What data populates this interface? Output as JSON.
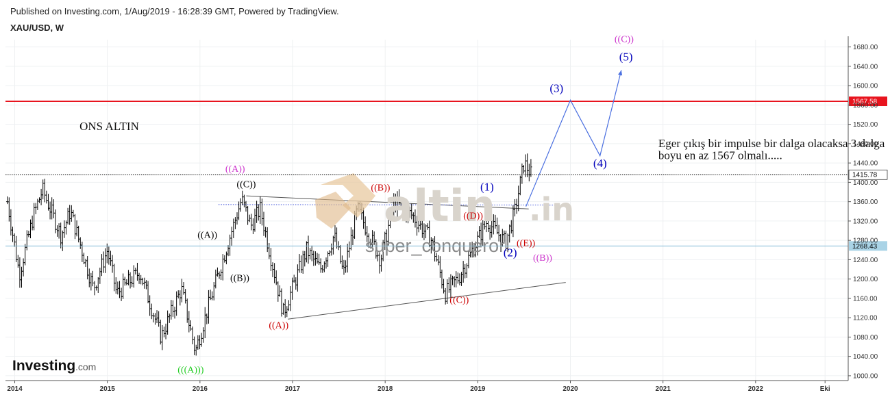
{
  "header": {
    "published": "Published on Investing.com, 1/Aug/2019 - 16:28:39 GMT, Powered by TradingView.",
    "symbol": "XAU/USD, W"
  },
  "watermark": {
    "logo": "altin",
    "logo_suffix": ".in",
    "user": "super_conqueror"
  },
  "brand": {
    "name": "Investing",
    "suffix": ".com"
  },
  "colors": {
    "resistance": "#e8141e",
    "current_price_line": "#000000",
    "blue_level": "#7fb8d4",
    "projection": "#4a6fe0",
    "bars": "#000000"
  },
  "chart_data": {
    "type": "ohlc",
    "x_unit": "year",
    "xlim": [
      2013.9,
      2023.0
    ],
    "ylim": [
      990,
      1695
    ],
    "y_ticks": [
      1000,
      1040,
      1080,
      1120,
      1160,
      1200,
      1240,
      1280,
      1320,
      1360,
      1400,
      1440,
      1480,
      1520,
      1560,
      1600,
      1640,
      1680
    ],
    "y_tick_labels": [
      "1000.00",
      "1040.00",
      "1080.00",
      "1120.00",
      "1160.00",
      "1200.00",
      "1240.00",
      "1280.00",
      "1320.00",
      "1360.00",
      "1400.00",
      "1440.00",
      "1480.00",
      "1520.00",
      "1560.00",
      "1600.00",
      "1640.00",
      "1680.00"
    ],
    "x_ticks": [
      {
        "x": 2014,
        "label": "2014"
      },
      {
        "x": 2015,
        "label": "2015"
      },
      {
        "x": 2016,
        "label": "2016"
      },
      {
        "x": 2017,
        "label": "2017"
      },
      {
        "x": 2018,
        "label": "2018"
      },
      {
        "x": 2019,
        "label": "2019"
      },
      {
        "x": 2020,
        "label": "2020"
      },
      {
        "x": 2021,
        "label": "2021"
      },
      {
        "x": 2022,
        "label": "2022"
      },
      {
        "x": 2022.75,
        "label": "Eki"
      }
    ],
    "price_path": [
      [
        2013.92,
        1360
      ],
      [
        2014.05,
        1210
      ],
      [
        2014.2,
        1330
      ],
      [
        2014.3,
        1385
      ],
      [
        2014.5,
        1290
      ],
      [
        2014.6,
        1340
      ],
      [
        2014.85,
        1180
      ],
      [
        2015.0,
        1260
      ],
      [
        2015.1,
        1170
      ],
      [
        2015.35,
        1215
      ],
      [
        2015.58,
        1080
      ],
      [
        2015.8,
        1180
      ],
      [
        2015.95,
        1050
      ],
      [
        2016.1,
        1150
      ],
      [
        2016.45,
        1365
      ],
      [
        2016.55,
        1310
      ],
      [
        2016.65,
        1345
      ],
      [
        2016.9,
        1130
      ],
      [
        2017.15,
        1260
      ],
      [
        2017.3,
        1220
      ],
      [
        2017.45,
        1290
      ],
      [
        2017.55,
        1210
      ],
      [
        2017.7,
        1345
      ],
      [
        2017.95,
        1240
      ],
      [
        2018.1,
        1360
      ],
      [
        2018.3,
        1330
      ],
      [
        2018.5,
        1280
      ],
      [
        2018.65,
        1170
      ],
      [
        2018.8,
        1205
      ],
      [
        2019.1,
        1320
      ],
      [
        2019.3,
        1275
      ],
      [
        2019.4,
        1340
      ],
      [
        2019.5,
        1440
      ],
      [
        2019.58,
        1415.78
      ]
    ],
    "horizontal_lines": [
      {
        "price": 1567.58,
        "label": "1567.58",
        "style": "solid",
        "color": "#e8141e"
      },
      {
        "price": 1415.78,
        "label": "1415.78",
        "style": "dotted",
        "color": "#000000"
      },
      {
        "price": 1268.43,
        "label": "1268.43",
        "style": "solid",
        "color": "#7fb8d4"
      }
    ],
    "projection_path": [
      [
        2019.52,
        1350
      ],
      [
        2020.0,
        1570
      ],
      [
        2020.32,
        1455
      ],
      [
        2020.55,
        1632
      ]
    ],
    "trendlines": [
      {
        "points": [
          [
            2016.5,
            1372
          ],
          [
            2019.55,
            1345
          ]
        ],
        "color": "#555555",
        "style": "solid"
      },
      {
        "points": [
          [
            2016.95,
            1117
          ],
          [
            2019.95,
            1193
          ]
        ],
        "color": "#555555",
        "style": "solid"
      },
      {
        "points": [
          [
            2016.2,
            1354
          ],
          [
            2019.85,
            1353
          ]
        ],
        "color": "#3b4fd8",
        "style": "dotted"
      }
    ],
    "wave_labels": [
      {
        "text": "((A))",
        "x": 2016.38,
        "y": 1422,
        "color": "#cc33cc"
      },
      {
        "text": "((C))",
        "x": 2016.5,
        "y": 1390,
        "color": "#000000"
      },
      {
        "text": "((A))",
        "x": 2016.08,
        "y": 1285,
        "color": "#000000"
      },
      {
        "text": "((B))",
        "x": 2016.43,
        "y": 1196,
        "color": "#000000"
      },
      {
        "text": "(((A)))",
        "x": 2015.9,
        "y": 1006,
        "color": "#22cc22"
      },
      {
        "text": "((A))",
        "x": 2016.85,
        "y": 1098,
        "color": "#cc0000"
      },
      {
        "text": "((B))",
        "x": 2017.95,
        "y": 1383,
        "color": "#cc0000"
      },
      {
        "text": "((C))",
        "x": 2018.8,
        "y": 1151,
        "color": "#cc0000"
      },
      {
        "text": "((D))",
        "x": 2018.95,
        "y": 1325,
        "color": "#cc0000"
      },
      {
        "text": "((E))",
        "x": 2019.52,
        "y": 1268,
        "color": "#cc0000"
      },
      {
        "text": "((B))",
        "x": 2019.7,
        "y": 1238,
        "color": "#cc33cc"
      },
      {
        "text": "((C))",
        "x": 2020.58,
        "y": 1690,
        "color": "#cc33cc"
      },
      {
        "text": "(1)",
        "x": 2019.1,
        "y": 1383,
        "color": "#0000bb",
        "big": true
      },
      {
        "text": "(2)",
        "x": 2019.35,
        "y": 1247,
        "color": "#0000bb",
        "big": true
      },
      {
        "text": "(3)",
        "x": 2019.85,
        "y": 1587,
        "color": "#0000bb",
        "big": true
      },
      {
        "text": "(4)",
        "x": 2020.32,
        "y": 1432,
        "color": "#0000bb",
        "big": true
      },
      {
        "text": "(5)",
        "x": 2020.6,
        "y": 1652,
        "color": "#0000bb",
        "big": true
      }
    ],
    "annotations": [
      {
        "text": "ONS ALTIN",
        "x": 2014.7,
        "y": 1508
      },
      {
        "text": "Eger çıkış bir impulse bir dalga olacaksa 3.dalga",
        "x": 2020.95,
        "y": 1473
      },
      {
        "text": "boyu en az 1567 olmalı.....",
        "x": 2020.95,
        "y": 1448
      }
    ]
  }
}
